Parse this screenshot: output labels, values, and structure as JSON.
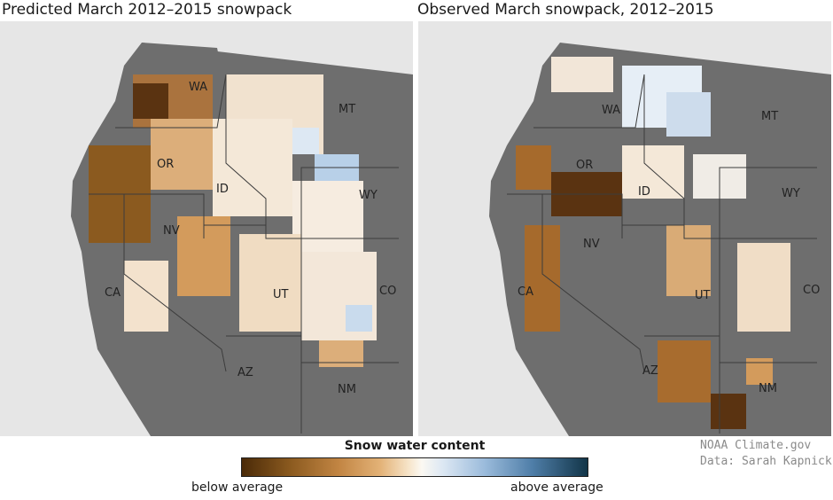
{
  "panels": [
    {
      "title": "Predicted March 2012–2015 snowpack",
      "states": [
        "WA",
        "MT",
        "OR",
        "ID",
        "WY",
        "NV",
        "CA",
        "UT",
        "CO",
        "AZ",
        "NM"
      ]
    },
    {
      "title": "Observed March snowpack, 2012–2015",
      "states": [
        "WA",
        "MT",
        "OR",
        "ID",
        "WY",
        "NV",
        "CA",
        "UT",
        "CO",
        "AZ",
        "NM"
      ]
    }
  ],
  "legend": {
    "title": "Snow water content",
    "low_label": "below average",
    "high_label": "above average",
    "colors": [
      "#4a2a08",
      "#8b5a1f",
      "#c28543",
      "#e3b277",
      "#f6e3c7",
      "#fbf8f2",
      "#dde8f3",
      "#9cbcdc",
      "#4f7ea8",
      "#123548"
    ]
  },
  "credits": {
    "line1": "NOAA Climate.gov",
    "line2": "Data: Sarah Kapnick"
  },
  "colors": {
    "land": "#6e6e6e",
    "ocean": "#e6e6e6",
    "border": "#3c3c3c"
  }
}
